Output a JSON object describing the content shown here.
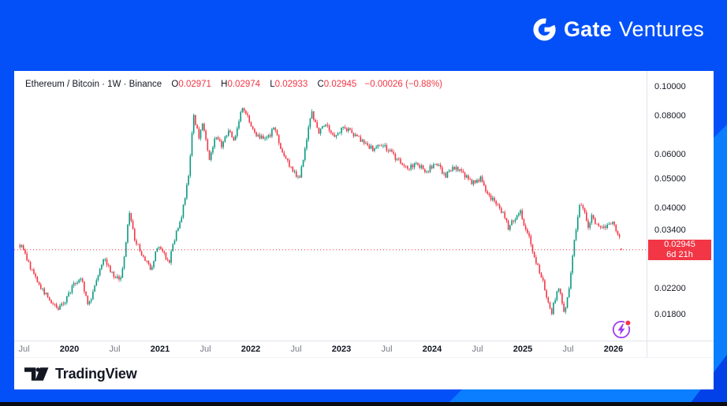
{
  "brand": {
    "name_bold": "Gate",
    "name_light": "Ventures",
    "icon": "gate-circle-g-logo",
    "frame_base_color": "#0450F8",
    "frame_light_color": "#0A7EFF",
    "frame_dark_color": "#0240E8"
  },
  "footer": {
    "logo_text": "TradingView",
    "icon": "tradingview-17-logo"
  },
  "events_icon": {
    "name": "flash-events-icon",
    "color": "#A13BF5",
    "badge_color": "#F23645"
  },
  "chart_data": {
    "type": "candlestick",
    "title": "Ethereum / Bitcoin · 1W · Binance",
    "symbol": "Ethereum / Bitcoin",
    "interval": "1W",
    "exchange": "Binance",
    "legend": {
      "o_label": "O",
      "o": "0.02971",
      "h_label": "H",
      "h": "0.02974",
      "l_label": "L",
      "l": "0.02933",
      "c_label": "C",
      "c": "0.02945",
      "change": "−0.00026 (−0.88%)"
    },
    "scale": "log",
    "ylim": [
      0.016,
      0.105
    ],
    "grid": false,
    "y_axis": {
      "ticks": [
        {
          "label": "0.10000",
          "value": 0.1
        },
        {
          "label": "0.08000",
          "value": 0.08
        },
        {
          "label": "0.06000",
          "value": 0.06
        },
        {
          "label": "0.05000",
          "value": 0.05
        },
        {
          "label": "0.04000",
          "value": 0.04
        },
        {
          "label": "0.03400",
          "value": 0.034
        },
        {
          "label": "0.02200",
          "value": 0.022
        },
        {
          "label": "0.01800",
          "value": 0.018
        }
      ]
    },
    "x_axis": {
      "ticks": [
        {
          "label": "Jul",
          "t": 2019.5,
          "major": false
        },
        {
          "label": "2020",
          "t": 2020.0,
          "major": true
        },
        {
          "label": "Jul",
          "t": 2020.5,
          "major": false
        },
        {
          "label": "2021",
          "t": 2021.0,
          "major": true
        },
        {
          "label": "Jul",
          "t": 2021.5,
          "major": false
        },
        {
          "label": "2022",
          "t": 2022.0,
          "major": true
        },
        {
          "label": "Jul",
          "t": 2022.5,
          "major": false
        },
        {
          "label": "2023",
          "t": 2023.0,
          "major": true
        },
        {
          "label": "Jul",
          "t": 2023.5,
          "major": false
        },
        {
          "label": "2024",
          "t": 2024.0,
          "major": true
        },
        {
          "label": "Jul",
          "t": 2024.5,
          "major": false
        },
        {
          "label": "2025",
          "t": 2025.0,
          "major": true
        },
        {
          "label": "Jul",
          "t": 2025.5,
          "major": false
        },
        {
          "label": "2026",
          "t": 2026.0,
          "major": true
        }
      ]
    },
    "price_line": {
      "value": 0.02945,
      "label": "0.02945",
      "countdown": "6d 21h",
      "color": "#F23645"
    },
    "last_bar": {
      "open": 0.02971,
      "high": 0.02974,
      "low": 0.02933,
      "close": 0.02945
    },
    "colors": {
      "up": "#089981",
      "down": "#F23645"
    },
    "start": 2019.455,
    "end": 2026.1,
    "bars_per_year": 52.18,
    "anchors": [
      [
        2019.455,
        0.0305
      ],
      [
        2019.5,
        0.029
      ],
      [
        2019.56,
        0.0262
      ],
      [
        2019.65,
        0.023
      ],
      [
        2019.75,
        0.0208
      ],
      [
        2019.87,
        0.0188
      ],
      [
        2019.95,
        0.02
      ],
      [
        2020.05,
        0.0228
      ],
      [
        2020.13,
        0.024
      ],
      [
        2020.21,
        0.0192
      ],
      [
        2020.3,
        0.0238
      ],
      [
        2020.38,
        0.0282
      ],
      [
        2020.46,
        0.0248
      ],
      [
        2020.56,
        0.0232
      ],
      [
        2020.62,
        0.03
      ],
      [
        2020.66,
        0.0392
      ],
      [
        2020.72,
        0.032
      ],
      [
        2020.8,
        0.0282
      ],
      [
        2020.9,
        0.0256
      ],
      [
        2020.97,
        0.03
      ],
      [
        2021.03,
        0.029
      ],
      [
        2021.1,
        0.0268
      ],
      [
        2021.17,
        0.033
      ],
      [
        2021.24,
        0.038
      ],
      [
        2021.31,
        0.05
      ],
      [
        2021.37,
        0.081
      ],
      [
        2021.43,
        0.068
      ],
      [
        2021.47,
        0.076
      ],
      [
        2021.54,
        0.0575
      ],
      [
        2021.61,
        0.07
      ],
      [
        2021.68,
        0.064
      ],
      [
        2021.76,
        0.073
      ],
      [
        2021.82,
        0.0665
      ],
      [
        2021.9,
        0.0855
      ],
      [
        2021.97,
        0.079
      ],
      [
        2022.06,
        0.07
      ],
      [
        2022.16,
        0.0665
      ],
      [
        2022.26,
        0.073
      ],
      [
        2022.36,
        0.06
      ],
      [
        2022.47,
        0.053
      ],
      [
        2022.54,
        0.0505
      ],
      [
        2022.62,
        0.069
      ],
      [
        2022.67,
        0.0835
      ],
      [
        2022.74,
        0.071
      ],
      [
        2022.83,
        0.075
      ],
      [
        2022.93,
        0.069
      ],
      [
        2023.03,
        0.0735
      ],
      [
        2023.13,
        0.0705
      ],
      [
        2023.24,
        0.066
      ],
      [
        2023.34,
        0.0628
      ],
      [
        2023.44,
        0.0648
      ],
      [
        2023.54,
        0.061
      ],
      [
        2023.64,
        0.0572
      ],
      [
        2023.74,
        0.0542
      ],
      [
        2023.84,
        0.0562
      ],
      [
        2023.94,
        0.053
      ],
      [
        2024.04,
        0.0568
      ],
      [
        2024.14,
        0.0512
      ],
      [
        2024.24,
        0.0545
      ],
      [
        2024.34,
        0.0518
      ],
      [
        2024.44,
        0.0488
      ],
      [
        2024.54,
        0.0502
      ],
      [
        2024.62,
        0.0442
      ],
      [
        2024.7,
        0.0425
      ],
      [
        2024.77,
        0.0392
      ],
      [
        2024.84,
        0.0348
      ],
      [
        2024.91,
        0.0372
      ],
      [
        2024.97,
        0.0398
      ],
      [
        2025.03,
        0.0345
      ],
      [
        2025.09,
        0.0308
      ],
      [
        2025.15,
        0.0268
      ],
      [
        2025.21,
        0.0238
      ],
      [
        2025.27,
        0.0203
      ],
      [
        2025.32,
        0.0185
      ],
      [
        2025.37,
        0.0212
      ],
      [
        2025.41,
        0.0222
      ],
      [
        2025.45,
        0.0181
      ],
      [
        2025.5,
        0.0208
      ],
      [
        2025.56,
        0.0302
      ],
      [
        2025.63,
        0.0418
      ],
      [
        2025.68,
        0.0388
      ],
      [
        2025.72,
        0.0352
      ],
      [
        2025.76,
        0.0376
      ],
      [
        2025.81,
        0.0354
      ],
      [
        2025.85,
        0.0342
      ],
      [
        2025.89,
        0.0356
      ],
      [
        2025.94,
        0.035
      ],
      [
        2025.99,
        0.0362
      ],
      [
        2026.03,
        0.0342
      ],
      [
        2026.07,
        0.0326
      ],
      [
        2026.1,
        0.02945
      ]
    ]
  }
}
